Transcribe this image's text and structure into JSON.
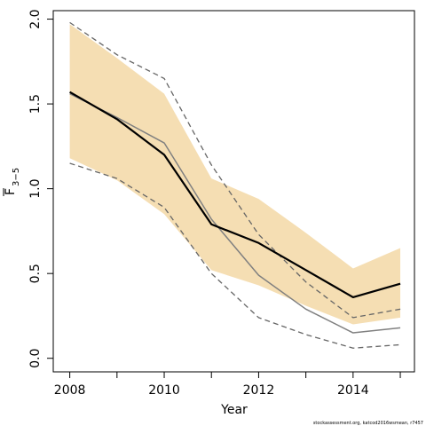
{
  "chart_data": {
    "type": "line",
    "xlabel": "Year",
    "ylabel_main": "F",
    "ylabel_sub": "3−5",
    "xlim": [
      2007.65,
      2015.3
    ],
    "ylim": [
      -0.08,
      2.05
    ],
    "x_ticks": [
      2008,
      2010,
      2012,
      2014
    ],
    "x_tick_labels": [
      "2008",
      "2010",
      "2012",
      "2014"
    ],
    "y_ticks": [
      0.0,
      0.5,
      1.0,
      1.5,
      2.0
    ],
    "y_tick_labels": [
      "0.0",
      "0.5",
      "1.0",
      "1.5",
      "2.0"
    ],
    "grid": false,
    "footer": "stockassessment.org, katcod2016wsmean, r7457",
    "colors": {
      "band": "#f5deb3",
      "estimate": "#000000",
      "retro": "#808080",
      "bounds": "#666666"
    },
    "x": [
      2008,
      2009,
      2010,
      2011,
      2012,
      2013,
      2014,
      2015
    ],
    "band": {
      "lower": [
        1.18,
        1.05,
        0.85,
        0.52,
        0.43,
        0.31,
        0.2,
        0.24
      ],
      "upper": [
        1.97,
        1.77,
        1.56,
        1.06,
        0.94,
        0.74,
        0.53,
        0.65
      ]
    },
    "series": [
      {
        "role": "estimate",
        "values": [
          1.57,
          1.41,
          1.2,
          0.79,
          0.68,
          0.52,
          0.36,
          0.44
        ]
      },
      {
        "role": "retro",
        "values": [
          1.56,
          1.42,
          1.27,
          0.82,
          0.49,
          0.29,
          0.15,
          0.18
        ]
      },
      {
        "role": "upper-bound",
        "values": [
          1.98,
          1.79,
          1.65,
          1.14,
          0.73,
          0.45,
          0.24,
          0.29
        ]
      },
      {
        "role": "lower-bound",
        "values": [
          1.15,
          1.06,
          0.89,
          0.5,
          0.24,
          0.14,
          0.06,
          0.08
        ]
      }
    ]
  }
}
